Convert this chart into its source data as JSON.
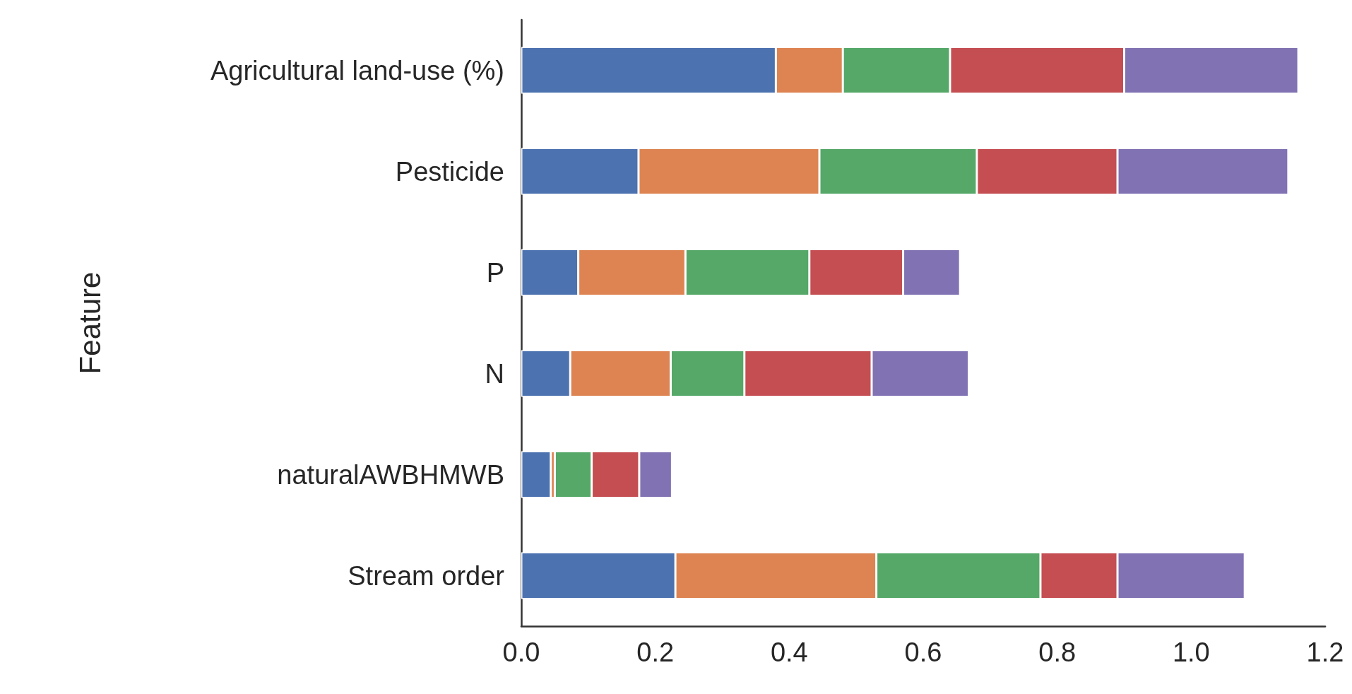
{
  "chart_data": {
    "type": "bar",
    "orientation": "horizontal",
    "stacked": true,
    "ylabel": "Feature",
    "categories": [
      "Agricultural land-use (%)",
      "Pesticide",
      "P",
      "N",
      "naturalAWBHMWB",
      "Stream order"
    ],
    "series": [
      {
        "color": "#4c72b0",
        "values": [
          0.38,
          0.175,
          0.085,
          0.073,
          0.044,
          0.23
        ]
      },
      {
        "color": "#dd8452",
        "values": [
          0.1,
          0.27,
          0.16,
          0.15,
          0.006,
          0.3
        ]
      },
      {
        "color": "#55a868",
        "values": [
          0.16,
          0.235,
          0.185,
          0.11,
          0.055,
          0.245
        ]
      },
      {
        "color": "#c44e52",
        "values": [
          0.26,
          0.21,
          0.14,
          0.19,
          0.071,
          0.115
        ]
      },
      {
        "color": "#8172b3",
        "values": [
          0.26,
          0.255,
          0.085,
          0.145,
          0.049,
          0.19
        ]
      }
    ],
    "xlim": [
      0,
      1.2
    ],
    "xticks": [
      {
        "value": 0,
        "label": "0.0"
      },
      0.2,
      0.4,
      0.6,
      0.8,
      {
        "value": 1,
        "label": "1.0"
      },
      1.2
    ],
    "grid": false
  }
}
